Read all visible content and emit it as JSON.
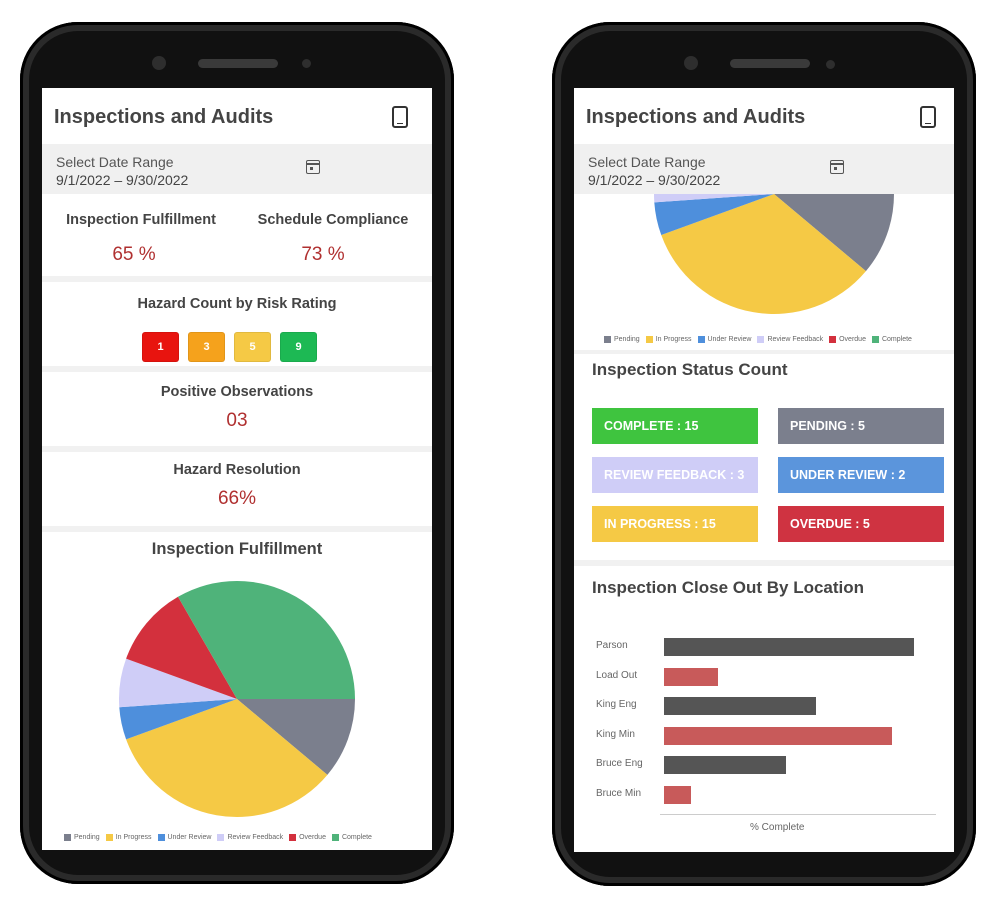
{
  "app": {
    "title": "Inspections and Audits",
    "date_range_label": "Select Date Range",
    "date_range_value": "9/1/2022 – 9/30/2022",
    "device_icon": "tablet-icon",
    "calendar_icon": "calendar-icon"
  },
  "left_screen": {
    "kpis": [
      {
        "label": "Inspection Fulfillment",
        "value": "65 %"
      },
      {
        "label": "Schedule Compliance",
        "value": "73 %"
      }
    ],
    "hazard": {
      "title": "Hazard Count by Risk Rating",
      "ratings": [
        {
          "value": "1",
          "color": "#e8140f"
        },
        {
          "value": "3",
          "color": "#f5a21c"
        },
        {
          "value": "5",
          "color": "#f5c945"
        },
        {
          "value": "9",
          "color": "#1db954"
        }
      ]
    },
    "positive_observations": {
      "title": "Positive Observations",
      "value": "03"
    },
    "hazard_resolution": {
      "title": "Hazard Resolution",
      "value": "66%"
    },
    "fulfillment_title": "Inspection Fulfillment"
  },
  "right_screen": {
    "status_title": "Inspection Status Count",
    "statuses": [
      {
        "label": "COMPLETE : 15",
        "color": "#3fc43f"
      },
      {
        "label": "PENDING : 5",
        "color": "#7b7f8d"
      },
      {
        "label": "REVIEW FEEDBACK : 3",
        "color": "#cfcdf7"
      },
      {
        "label": "UNDER REVIEW : 2",
        "color": "#5b95dc"
      },
      {
        "label": "IN PROGRESS : 15",
        "color": "#f5c945"
      },
      {
        "label": "OVERDUE : 5",
        "color": "#cf3341"
      }
    ],
    "closeout_title": "Inspection Close Out By Location"
  },
  "chart_data": [
    {
      "type": "pie",
      "title": "Inspection Fulfillment",
      "categories": [
        "Pending",
        "In Progress",
        "Under Review",
        "Review Feedback",
        "Overdue",
        "Complete"
      ],
      "values": [
        5,
        15,
        2,
        3,
        5,
        15
      ],
      "colors": [
        "#7b7f8d",
        "#f5c945",
        "#4e8fdc",
        "#cfcdf7",
        "#d3303d",
        "#4fb37a"
      ]
    },
    {
      "type": "bar",
      "orientation": "horizontal",
      "categories": [
        "Parson",
        "Load Out",
        "King Eng",
        "King Min",
        "Bruce  Eng",
        "Bruce Min"
      ],
      "values": [
        92,
        20,
        56,
        84,
        45,
        10
      ],
      "colors": [
        "#555555",
        "#c85a5a",
        "#555555",
        "#c85a5a",
        "#555555",
        "#c85a5a"
      ],
      "xlabel": "% Complete",
      "xlim": [
        0,
        100
      ]
    }
  ]
}
